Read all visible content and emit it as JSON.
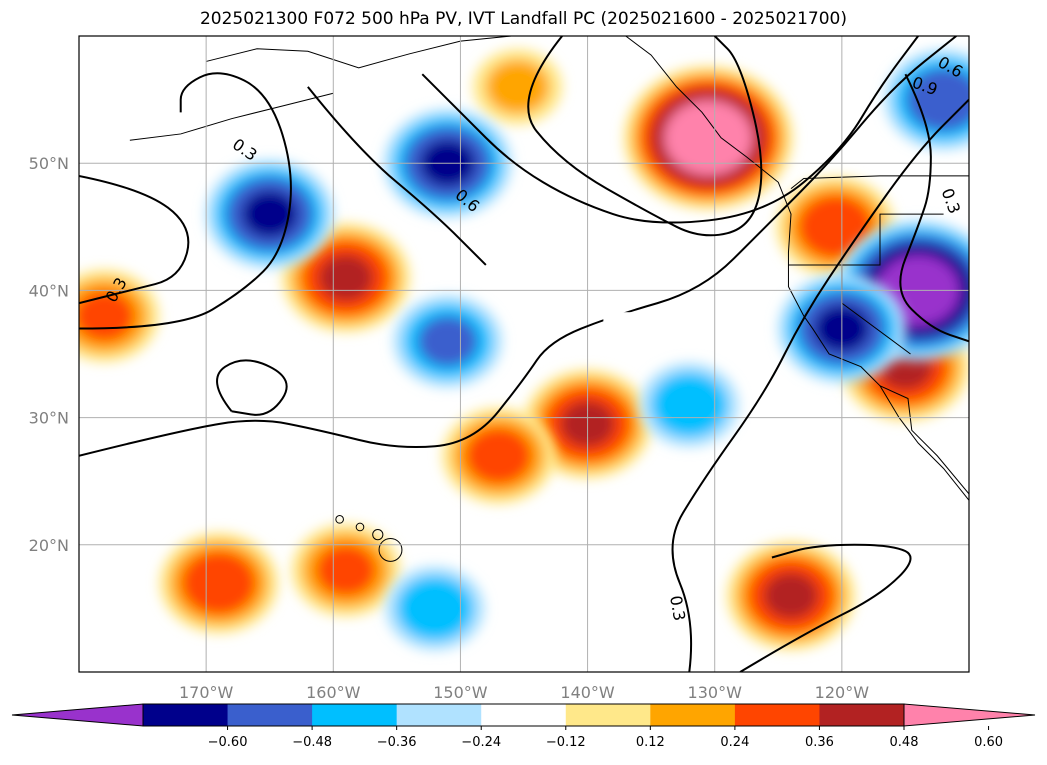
{
  "title": "2025021300 F072 500 hPa PV, IVT Landfall PC (2025021600 - 2025021700)",
  "chart_data": {
    "type": "heatmap",
    "title": "2025021300 F072 500 hPa PV, IVT Landfall PC (2025021600 - 2025021700)",
    "projection": "PlateCarree",
    "lon_range": [
      -180,
      -110
    ],
    "lat_range": [
      10,
      60
    ],
    "x_ticks": [
      "170°W",
      "160°W",
      "150°W",
      "140°W",
      "130°W",
      "120°W"
    ],
    "x_tick_values": [
      -170,
      -160,
      -150,
      -140,
      -130,
      -120
    ],
    "y_ticks": [
      "20°N",
      "30°N",
      "40°N",
      "50°N"
    ],
    "y_tick_values": [
      20,
      30,
      40,
      50
    ],
    "grid": true,
    "colorbar": {
      "orientation": "horizontal",
      "extend": "both",
      "levels": [
        -0.72,
        -0.6,
        -0.48,
        -0.36,
        -0.24,
        -0.12,
        0.12,
        0.24,
        0.36,
        0.48,
        0.6,
        0.72
      ],
      "tick_labels": [
        "−0.60",
        "−0.48",
        "−0.36",
        "−0.24",
        "−0.12",
        "0.12",
        "0.24",
        "0.36",
        "0.48",
        "0.60"
      ],
      "colors": [
        "#9932cc",
        "#00008b",
        "#3a5fcd",
        "#00bfff",
        "#b0e2ff",
        "#ffffff",
        "#ffe88a",
        "#ffa500",
        "#ff4500",
        "#b22222",
        "#ff82ab"
      ]
    },
    "contour_labels": [
      "0.3",
      "0.6",
      "0.3",
      "0.3",
      "0.9",
      "0.6",
      "0.3",
      "0.3"
    ],
    "anomalies": [
      {
        "sign": "positive",
        "lon": -130.5,
        "lat": 52,
        "peak": 0.72
      },
      {
        "sign": "positive",
        "lon": -159,
        "lat": 41,
        "peak": 0.5
      },
      {
        "sign": "positive",
        "lon": -178,
        "lat": 38,
        "peak": 0.4
      },
      {
        "sign": "positive",
        "lon": -140,
        "lat": 29.5,
        "peak": 0.5
      },
      {
        "sign": "positive",
        "lon": -147,
        "lat": 27,
        "peak": 0.42
      },
      {
        "sign": "positive",
        "lon": -124,
        "lat": 16,
        "peak": 0.5
      },
      {
        "sign": "positive",
        "lon": -115,
        "lat": 34,
        "peak": 0.5
      },
      {
        "sign": "positive",
        "lon": -120.5,
        "lat": 45,
        "peak": 0.45
      },
      {
        "sign": "positive",
        "lon": -159,
        "lat": 18,
        "peak": 0.4
      },
      {
        "sign": "positive",
        "lon": -169,
        "lat": 17,
        "peak": 0.45
      },
      {
        "sign": "positive",
        "lon": -145.5,
        "lat": 56,
        "peak": 0.3
      },
      {
        "sign": "negative",
        "lon": -114,
        "lat": 40,
        "peak": -0.7
      },
      {
        "sign": "negative",
        "lon": -112,
        "lat": 55,
        "peak": -0.45
      },
      {
        "sign": "negative",
        "lon": -165,
        "lat": 46,
        "peak": -0.5
      },
      {
        "sign": "negative",
        "lon": -151,
        "lat": 50,
        "peak": -0.5
      },
      {
        "sign": "negative",
        "lon": -151,
        "lat": 36,
        "peak": -0.4
      },
      {
        "sign": "negative",
        "lon": -120,
        "lat": 37,
        "peak": -0.5
      },
      {
        "sign": "negative",
        "lon": -132,
        "lat": 31,
        "peak": -0.35
      },
      {
        "sign": "negative",
        "lon": -152,
        "lat": 15,
        "peak": -0.35
      }
    ]
  }
}
